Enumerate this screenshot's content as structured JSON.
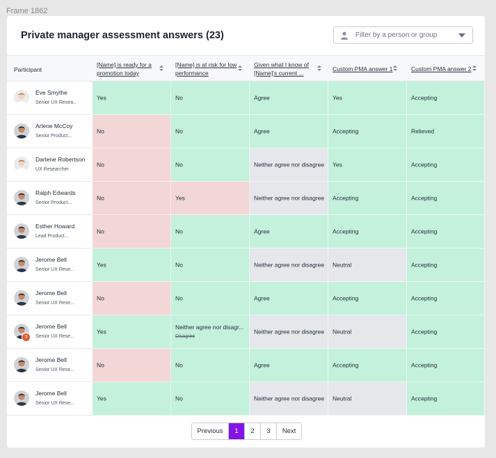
{
  "frame_label": "Frame 1862",
  "title": "Private manager assessment answers (23)",
  "filter": {
    "placeholder": "Filter by a person or group",
    "icon": "person-icon"
  },
  "columns": [
    {
      "key": "participant",
      "lines": [
        "Participant"
      ]
    },
    {
      "key": "promo",
      "lines": [
        "[Name] is ready for a",
        "promotion today"
      ]
    },
    {
      "key": "risk",
      "lines": [
        "[Name] is at risk for low",
        "performance"
      ]
    },
    {
      "key": "given",
      "lines": [
        "Given what I know of",
        "[Name]'s current ..."
      ]
    },
    {
      "key": "pma1",
      "lines": [
        "Custom PMA answer 1"
      ]
    },
    {
      "key": "pma2",
      "lines": [
        "Custom PMA answer 2"
      ]
    }
  ],
  "colors": {
    "green": "#c4f1dc",
    "red": "#f3d6d6",
    "gray": "#e5e7eb",
    "accent": "#8414e6",
    "badge": "#e4562b"
  },
  "rows": [
    {
      "name": "Eve Smythe",
      "role": "Senior UX Resea...",
      "avatar": "light",
      "cells": [
        {
          "text": "Yes",
          "color": "green"
        },
        {
          "text": "No",
          "color": "green"
        },
        {
          "text": "Agree",
          "color": "green"
        },
        {
          "text": "Yes",
          "color": "green"
        },
        {
          "text": "Accepting",
          "color": "green"
        }
      ]
    },
    {
      "name": "Arlene McCoy",
      "role": "Senior Product...",
      "avatar": "dark",
      "cells": [
        {
          "text": "No",
          "color": "red"
        },
        {
          "text": "No",
          "color": "green"
        },
        {
          "text": "Agree",
          "color": "green"
        },
        {
          "text": "Accepting",
          "color": "green"
        },
        {
          "text": "Relieved",
          "color": "green"
        }
      ]
    },
    {
      "name": "Darlene Robertson",
      "role": "UX Researcher",
      "avatar": "light",
      "cells": [
        {
          "text": "No",
          "color": "red"
        },
        {
          "text": "No",
          "color": "green"
        },
        {
          "text": "Neither agree nor disagree",
          "color": "gray"
        },
        {
          "text": "Yes",
          "color": "green"
        },
        {
          "text": "Accepting",
          "color": "green"
        }
      ]
    },
    {
      "name": "Ralph Edwards",
      "role": "Senior Product...",
      "avatar": "dark",
      "cells": [
        {
          "text": "No",
          "color": "red"
        },
        {
          "text": "Yes",
          "color": "red"
        },
        {
          "text": "Neither agree nor disagree",
          "color": "gray"
        },
        {
          "text": "Accepting",
          "color": "green"
        },
        {
          "text": "Accepting",
          "color": "green"
        }
      ]
    },
    {
      "name": "Esther Howard",
      "role": "Lead Product...",
      "avatar": "dark",
      "cells": [
        {
          "text": "No",
          "color": "red"
        },
        {
          "text": "No",
          "color": "green"
        },
        {
          "text": "Agree",
          "color": "green"
        },
        {
          "text": "Accepting",
          "color": "green"
        },
        {
          "text": "Accepting",
          "color": "green"
        }
      ]
    },
    {
      "name": "Jerome Bell",
      "role": "Senior UX Rese...",
      "avatar": "dark",
      "cells": [
        {
          "text": "Yes",
          "color": "green"
        },
        {
          "text": "No",
          "color": "green"
        },
        {
          "text": "Neither agree nor disagree",
          "color": "gray"
        },
        {
          "text": "Neutral",
          "color": "gray"
        },
        {
          "text": "Accepting",
          "color": "green"
        }
      ]
    },
    {
      "name": "Jerome Bell",
      "role": "Senior UX Rese...",
      "avatar": "dark",
      "cells": [
        {
          "text": "No",
          "color": "red"
        },
        {
          "text": "No",
          "color": "green"
        },
        {
          "text": "Agree",
          "color": "green"
        },
        {
          "text": "Accepting",
          "color": "green"
        },
        {
          "text": "Accepting",
          "color": "green"
        }
      ]
    },
    {
      "name": "Jerome Bell",
      "role": "Senior UX Rese...",
      "avatar": "dark",
      "badge": "3",
      "cells": [
        {
          "text": "Yes",
          "color": "green"
        },
        {
          "text": "Neither agree nor disagr...",
          "sub": "Disagree",
          "color": "green"
        },
        {
          "text": "Neither agree nor disagree",
          "color": "gray"
        },
        {
          "text": "Neutral",
          "color": "gray"
        },
        {
          "text": "Accepting",
          "color": "green"
        }
      ]
    },
    {
      "name": "Jerome Bell",
      "role": "Senior UX Rese...",
      "avatar": "dark",
      "cells": [
        {
          "text": "No",
          "color": "red"
        },
        {
          "text": "No",
          "color": "green"
        },
        {
          "text": "Agree",
          "color": "green"
        },
        {
          "text": "Accepting",
          "color": "green"
        },
        {
          "text": "Accepting",
          "color": "green"
        }
      ]
    },
    {
      "name": "Jerome Bell",
      "role": "Senior UX Rese...",
      "avatar": "dark",
      "cells": [
        {
          "text": "Yes",
          "color": "green"
        },
        {
          "text": "No",
          "color": "green"
        },
        {
          "text": "Neither agree nor disagree",
          "color": "gray"
        },
        {
          "text": "Neutral",
          "color": "gray"
        },
        {
          "text": "Accepting",
          "color": "green"
        }
      ]
    }
  ],
  "pagination": {
    "previous": "Previous",
    "pages": [
      "1",
      "2",
      "3"
    ],
    "current": "1",
    "next": "Next"
  }
}
